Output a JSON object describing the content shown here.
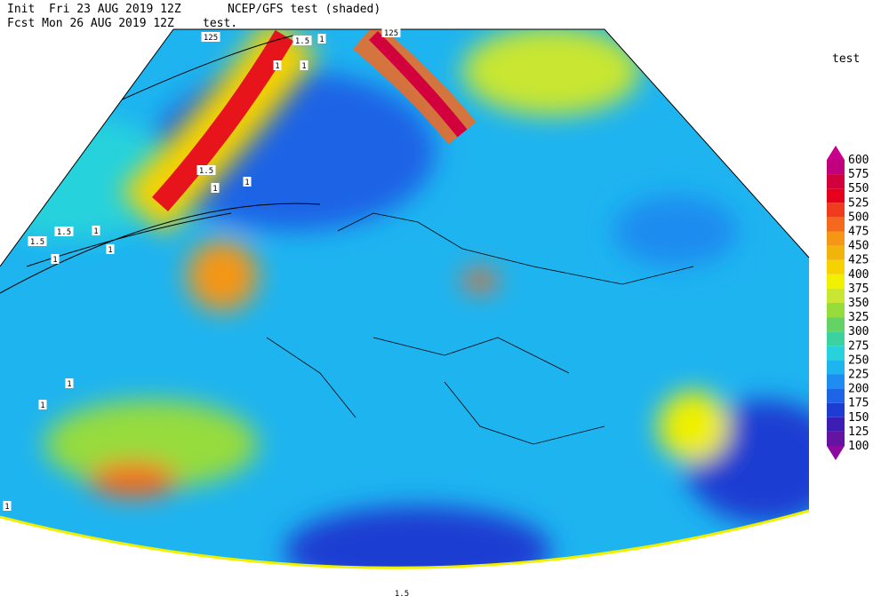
{
  "header": {
    "init": "Init  Fri 23 AUG 2019 12Z",
    "fcst": "Fcst Mon 26 AUG 2019 12Z",
    "model": "NCEP/GFS test (shaded)",
    "field": "test."
  },
  "legend": {
    "title": "test",
    "levels": [
      100,
      125,
      150,
      175,
      200,
      225,
      250,
      275,
      300,
      325,
      350,
      375,
      400,
      425,
      450,
      475,
      500,
      525,
      550,
      575,
      600
    ],
    "colors": [
      "#8c0aa0",
      "#6414a0",
      "#3c1eb4",
      "#1e3cd2",
      "#1e64e6",
      "#1e8cf0",
      "#1eb4f0",
      "#28d2dc",
      "#3cd2a0",
      "#64d264",
      "#96dc3c",
      "#c8e632",
      "#f0f000",
      "#f5d200",
      "#f0b40a",
      "#f59614",
      "#f5691e",
      "#f03c1e",
      "#e6001e",
      "#d2003c",
      "#c0007f",
      "#c8008c"
    ]
  },
  "contour_labels": [
    "125",
    "1.5",
    "1",
    "125",
    "1",
    "1",
    "1.5",
    "1",
    "1",
    "1.5",
    "1.5",
    "1",
    "1",
    "1",
    "1",
    "1",
    "1",
    "1.5"
  ]
}
